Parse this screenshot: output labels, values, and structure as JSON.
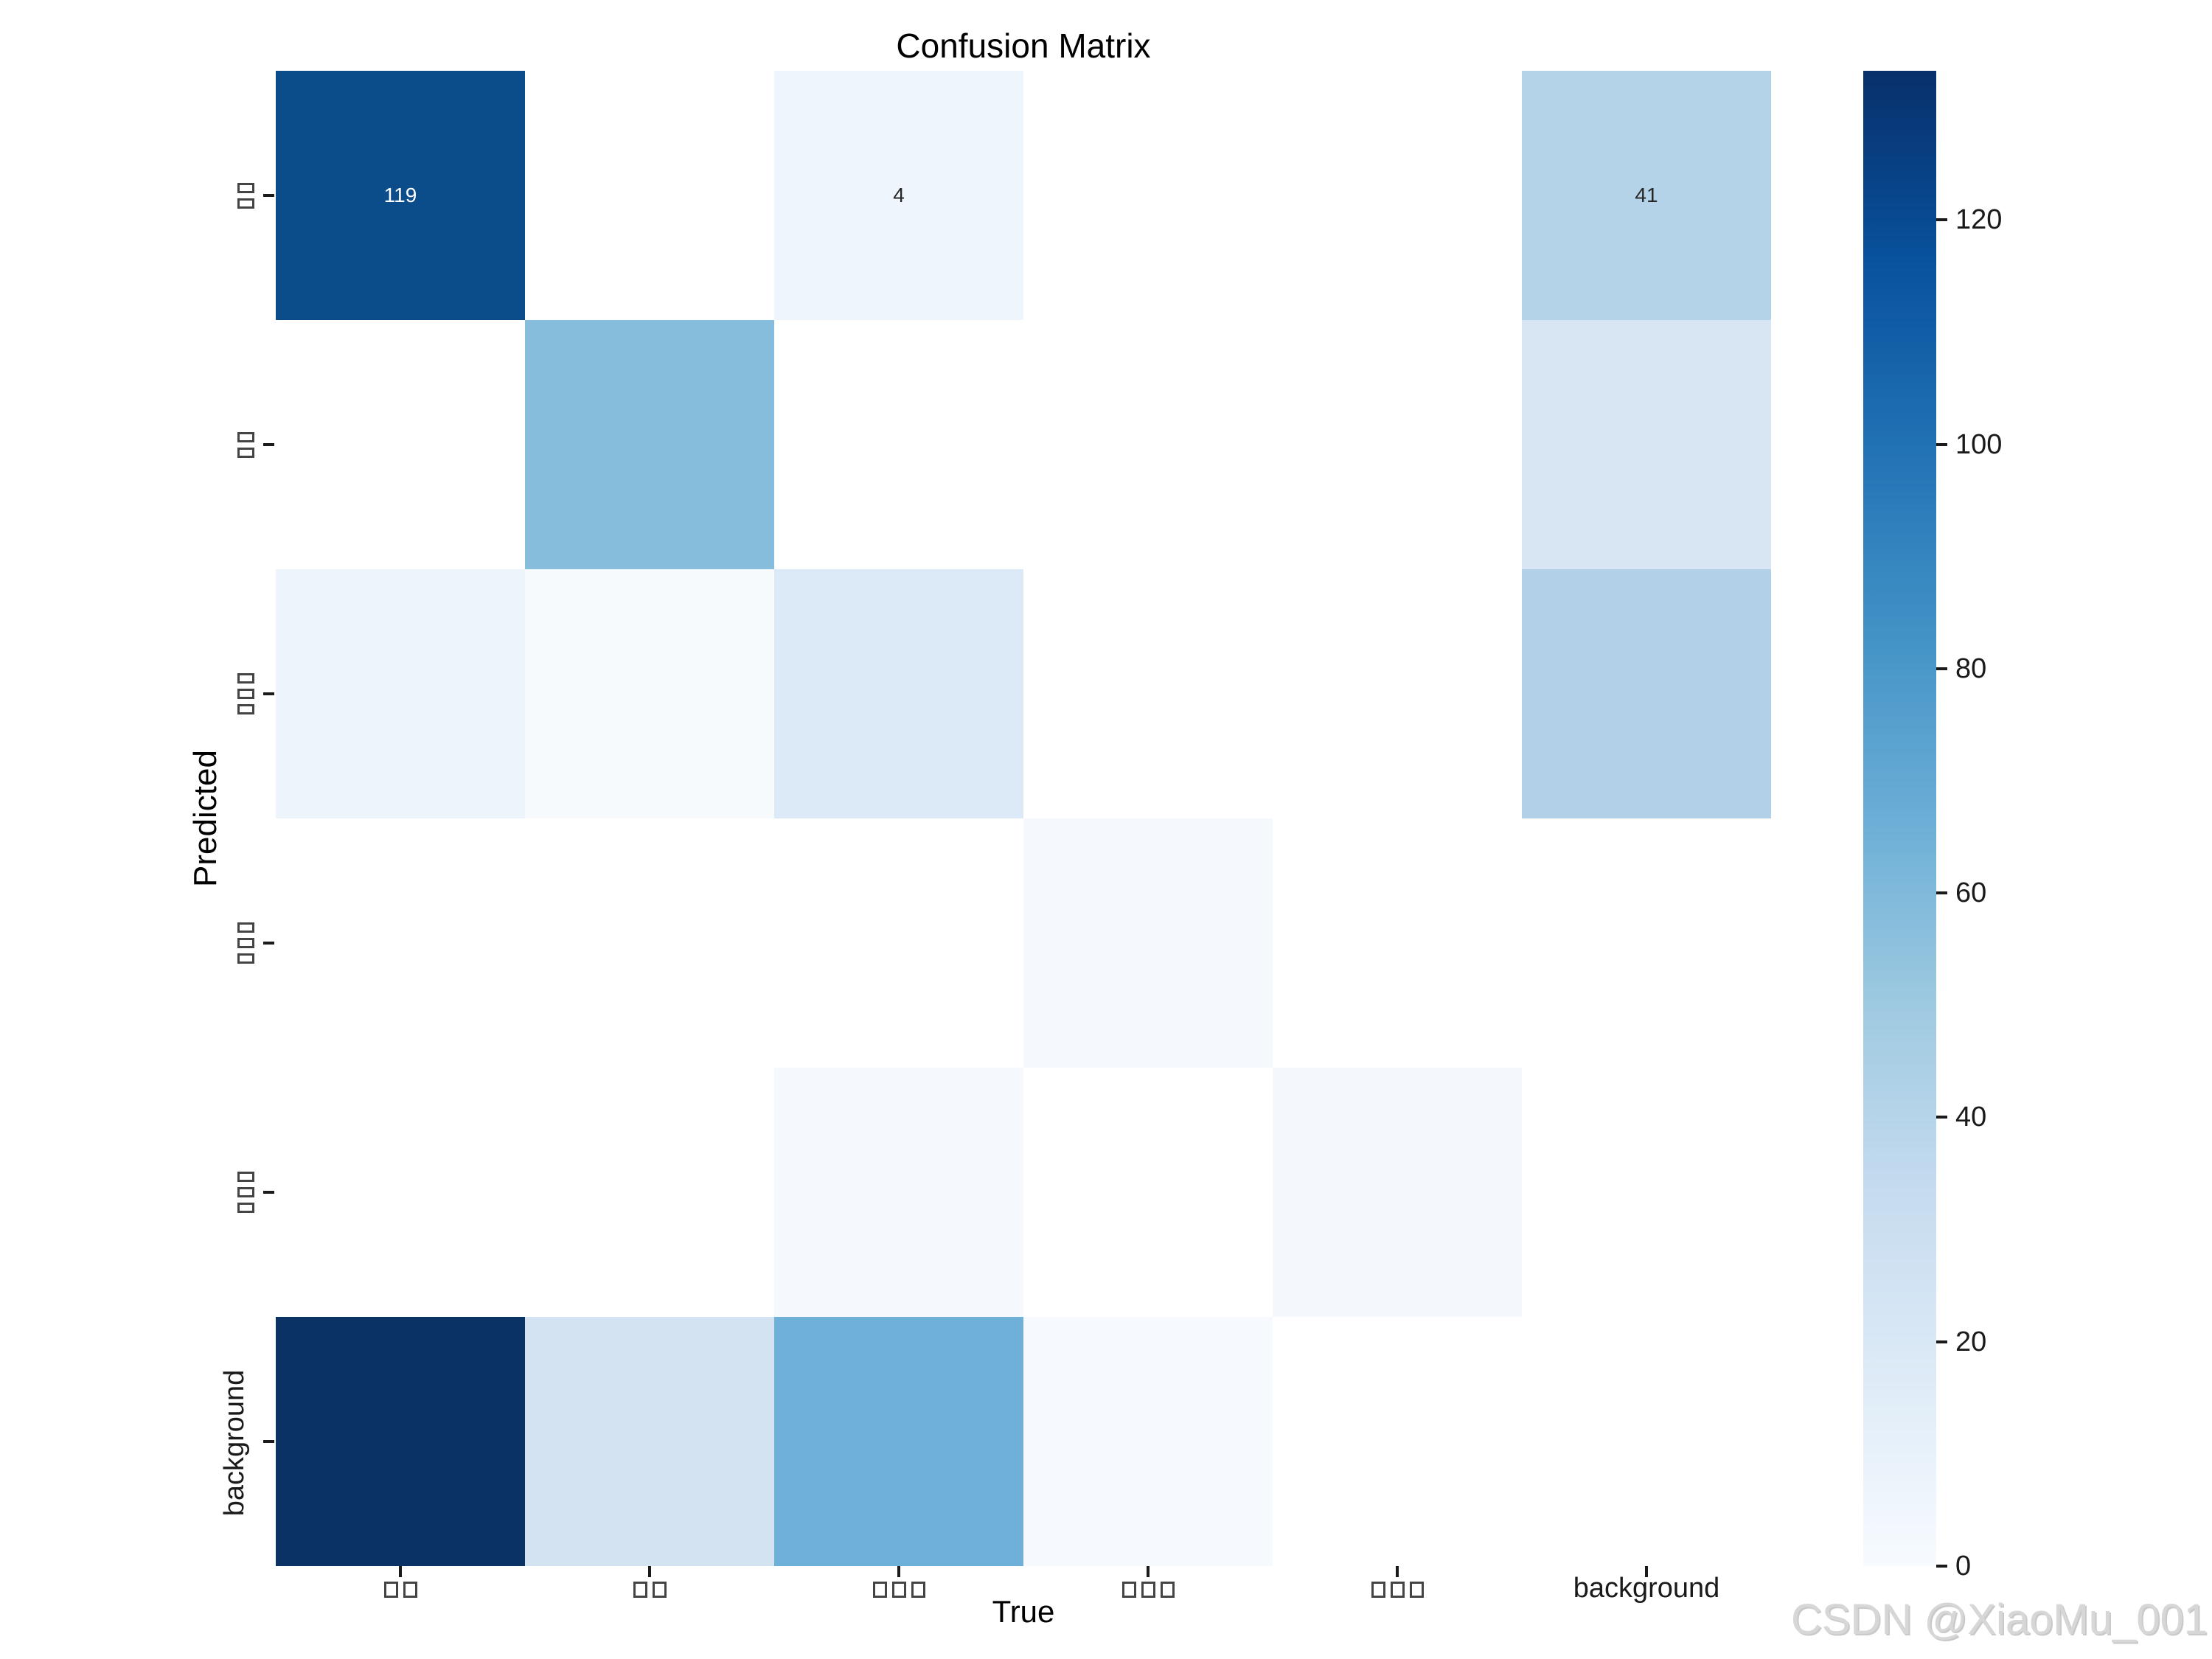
{
  "title": "Confusion Matrix",
  "axes": {
    "x_label": "True",
    "y_label": "Predicted"
  },
  "classes": [
    {
      "label": "□□",
      "boxes": 2
    },
    {
      "label": "□□",
      "boxes": 2
    },
    {
      "label": "□□□",
      "boxes": 3
    },
    {
      "label": "□□□",
      "boxes": 3
    },
    {
      "label": "□□□",
      "boxes": 3
    },
    {
      "label": "background",
      "boxes": 0
    }
  ],
  "chart_data": {
    "type": "heatmap",
    "title": "Confusion Matrix",
    "xlabel": "True",
    "ylabel": "Predicted",
    "x_categories": [
      "□□",
      "□□",
      "□□□",
      "□□□",
      "□□□",
      "background"
    ],
    "y_categories": [
      "□□",
      "□□",
      "□□□",
      "□□□",
      "□□□",
      "background"
    ],
    "matrix": [
      [
        119,
        0,
        4,
        0,
        0,
        41
      ],
      [
        0,
        57,
        0,
        0,
        0,
        21
      ],
      [
        5,
        2,
        16,
        0,
        0,
        42
      ],
      [
        0,
        0,
        0,
        3,
        0,
        0
      ],
      [
        0,
        0,
        4,
        0,
        4,
        0
      ],
      [
        133,
        24,
        64,
        3,
        0,
        0
      ]
    ],
    "annotated_cells": [
      {
        "row": 0,
        "col": 0,
        "text": "119"
      },
      {
        "row": 0,
        "col": 2,
        "text": "4"
      },
      {
        "row": 0,
        "col": 5,
        "text": "41"
      }
    ],
    "annotations": [
      [
        "119",
        "",
        "4",
        "",
        "",
        "41"
      ],
      [
        "",
        "",
        "",
        "",
        "",
        ""
      ],
      [
        "",
        "",
        "",
        "",
        "",
        ""
      ],
      [
        "",
        "",
        "",
        "",
        "",
        ""
      ],
      [
        "",
        "",
        "",
        "",
        "",
        ""
      ],
      [
        "",
        "",
        "",
        "",
        "",
        ""
      ]
    ],
    "cell_colors": [
      [
        "#0b4c8b",
        "#ffffff",
        "#eff5fc",
        "#ffffff",
        "#ffffff",
        "#b5d3e8"
      ],
      [
        "#ffffff",
        "#86bddd",
        "#ffffff",
        "#ffffff",
        "#ffffff",
        "#d8e6f4"
      ],
      [
        "#eef4fb",
        "#f7fafd",
        "#dce9f6",
        "#ffffff",
        "#ffffff",
        "#b2d1e8"
      ],
      [
        "#ffffff",
        "#ffffff",
        "#ffffff",
        "#f5f9fd",
        "#ffffff",
        "#ffffff"
      ],
      [
        "#ffffff",
        "#ffffff",
        "#f5f9fd",
        "#ffffff",
        "#f4f8fc",
        "#ffffff"
      ],
      [
        "#0a3264",
        "#d3e3f1",
        "#6fb0d8",
        "#f6f9fd",
        "#ffffff",
        "#ffffff"
      ]
    ],
    "colormap": "Blues",
    "vmin": 0,
    "vmax": 133,
    "colorbar_ticks": [
      120,
      100,
      80,
      60,
      40,
      20,
      0
    ],
    "legend_position": "right-colorbar",
    "grid": false
  },
  "colorbar": {
    "tick_labels": [
      "120",
      "100",
      "80",
      "60",
      "40",
      "20",
      "0"
    ]
  },
  "watermark": "CSDN @XiaoMu_001",
  "colors": {
    "annotation_light": "#ffffff",
    "annotation_dark": "#262626",
    "tick": "#1a1a1a",
    "tofu_border": "#444444",
    "watermark": "#d7d7d7",
    "cmap_max": "#08306b",
    "cmap_min": "#f7fbff"
  }
}
